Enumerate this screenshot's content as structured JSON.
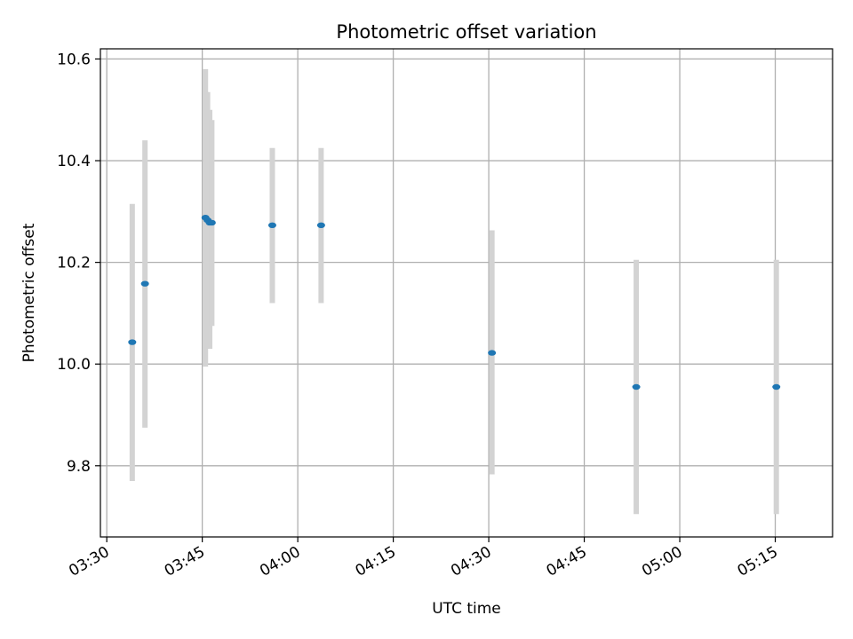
{
  "chart_data": {
    "type": "scatter",
    "title": "Photometric offset variation",
    "xlabel": "UTC time",
    "ylabel": "Photometric offset",
    "x_ticks": [
      "03:30",
      "03:45",
      "04:00",
      "04:15",
      "04:30",
      "04:45",
      "05:00",
      "05:15"
    ],
    "y_ticks": [
      "9.8",
      "10.0",
      "10.2",
      "10.4",
      "10.6"
    ],
    "xlim": [
      "03:29",
      "05:24"
    ],
    "ylim": [
      9.66,
      10.62
    ],
    "grid": true,
    "point_color": "#1f77b4",
    "errorbar_color": "#d3d3d3",
    "points": [
      {
        "x": "03:34:00",
        "y": 10.043,
        "yerr_low": 9.77,
        "yerr_high": 10.315
      },
      {
        "x": "03:36:00",
        "y": 10.158,
        "yerr_low": 9.875,
        "yerr_high": 10.44
      },
      {
        "x": "03:45:30",
        "y": 10.288,
        "yerr_low": 9.995,
        "yerr_high": 10.58
      },
      {
        "x": "03:45:50",
        "y": 10.283,
        "yerr_low": 10.06,
        "yerr_high": 10.535
      },
      {
        "x": "03:46:10",
        "y": 10.278,
        "yerr_low": 10.03,
        "yerr_high": 10.5
      },
      {
        "x": "03:46:30",
        "y": 10.278,
        "yerr_low": 10.075,
        "yerr_high": 10.48
      },
      {
        "x": "03:56:00",
        "y": 10.273,
        "yerr_low": 10.12,
        "yerr_high": 10.425
      },
      {
        "x": "04:03:40",
        "y": 10.273,
        "yerr_low": 10.12,
        "yerr_high": 10.425
      },
      {
        "x": "04:30:30",
        "y": 10.022,
        "yerr_low": 9.783,
        "yerr_high": 10.263
      },
      {
        "x": "04:53:10",
        "y": 9.955,
        "yerr_low": 9.705,
        "yerr_high": 10.205
      },
      {
        "x": "05:15:10",
        "y": 9.955,
        "yerr_low": 9.705,
        "yerr_high": 10.205
      }
    ]
  }
}
